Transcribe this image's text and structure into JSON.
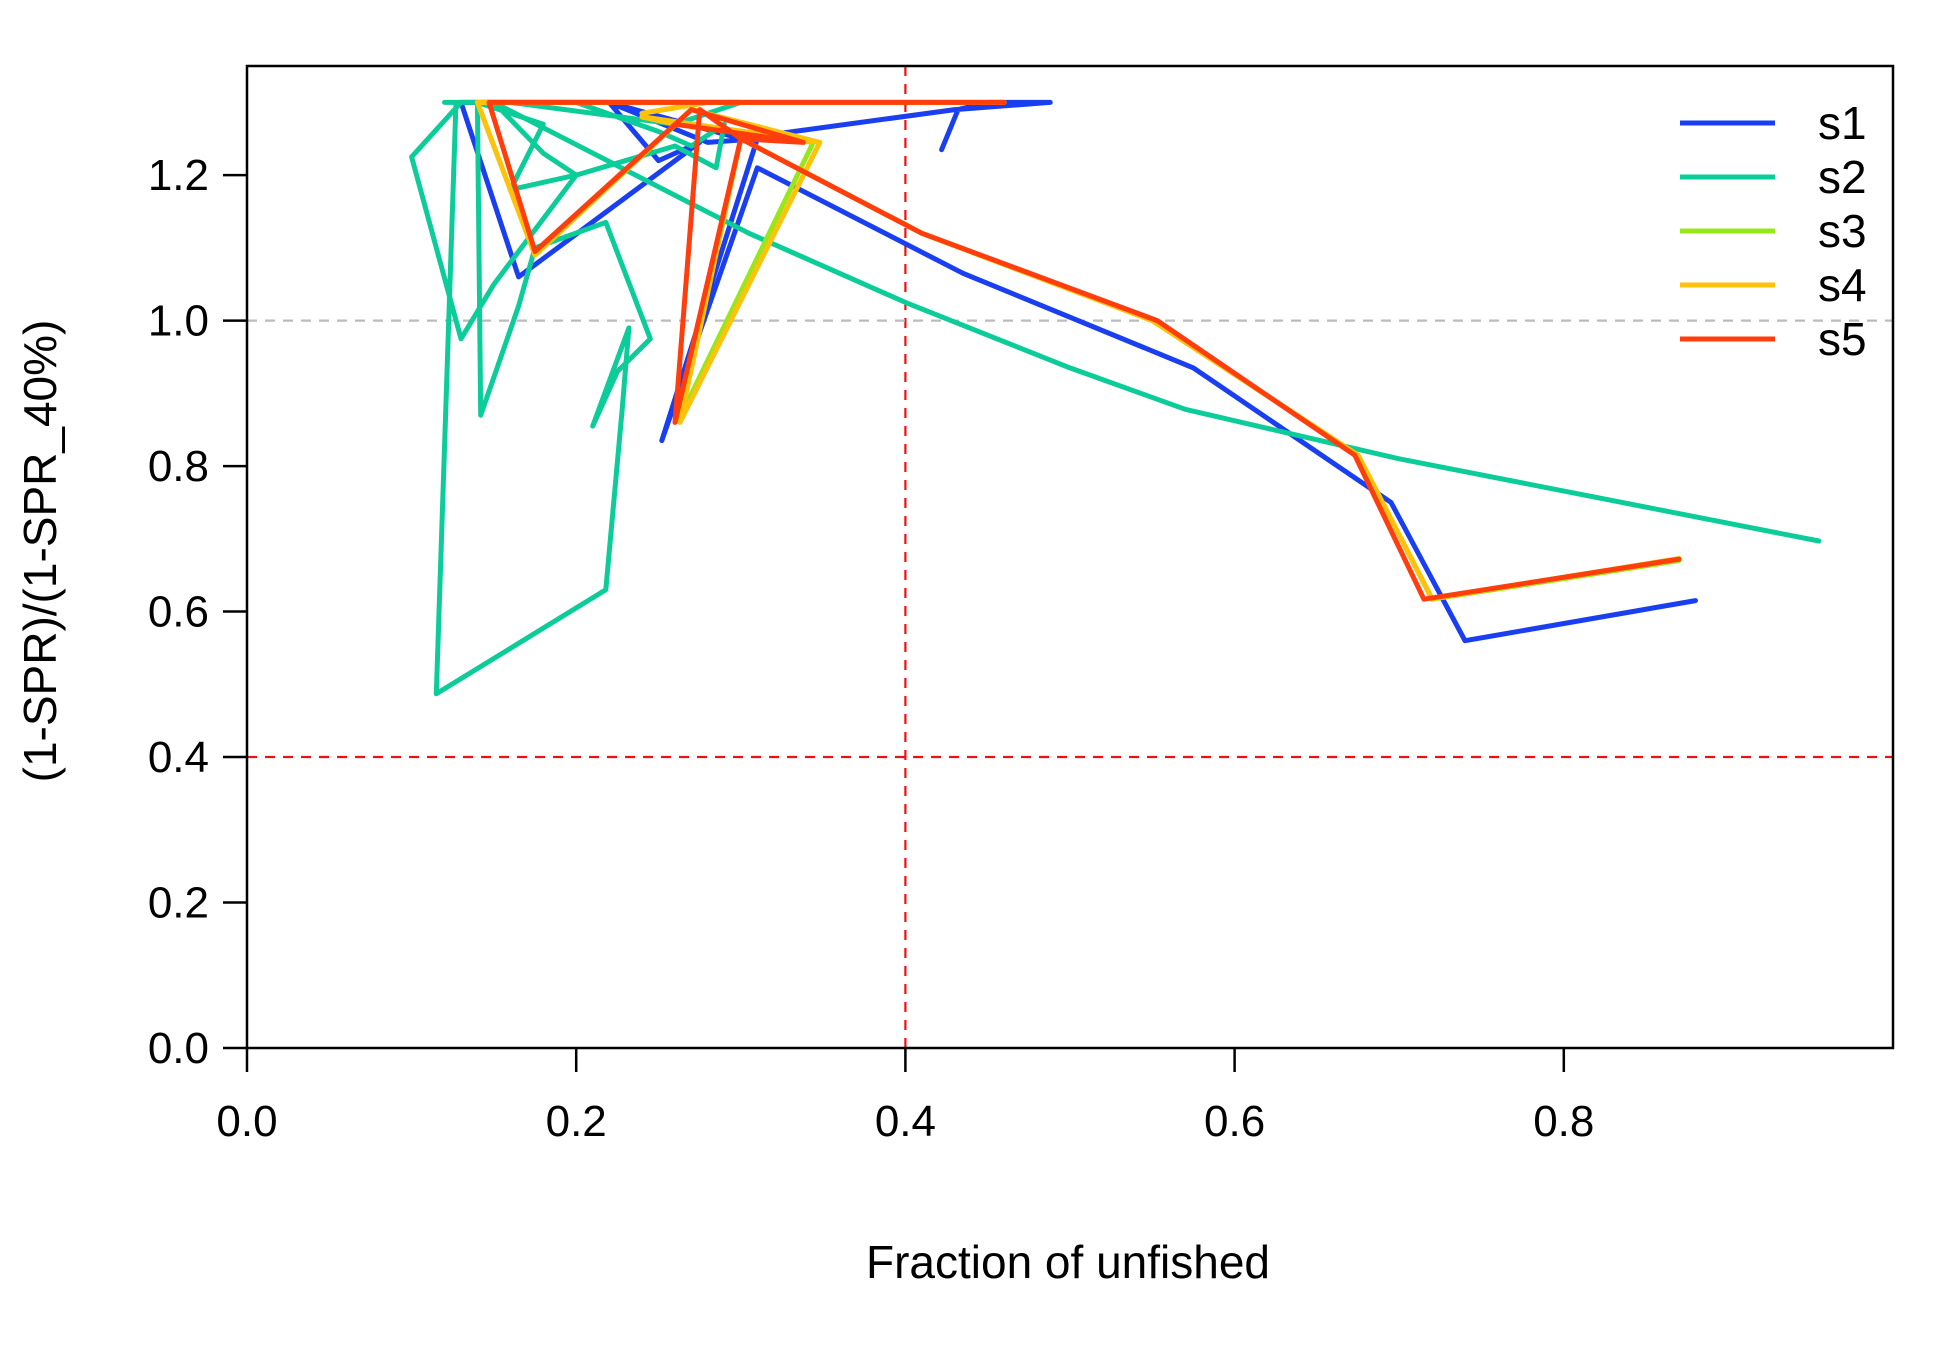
{
  "chart_data": {
    "type": "line",
    "title": "",
    "xlabel": "Fraction of unfished",
    "ylabel": "(1-SPR)/(1-SPR_40%)",
    "xlim": [
      0.0,
      1.0
    ],
    "ylim": [
      0.0,
      1.35
    ],
    "xticks": [
      "0.0",
      "0.2",
      "0.4",
      "0.6",
      "0.8"
    ],
    "yticks": [
      "0.0",
      "0.2",
      "0.4",
      "0.6",
      "0.8",
      "1.0",
      "1.2"
    ],
    "grid": false,
    "legend_position": "top-right",
    "reference_lines": [
      {
        "axis": "x",
        "value": 0.4,
        "color": "#ee1111",
        "style": "dashed"
      },
      {
        "axis": "y",
        "value": 0.4,
        "color": "#ee1111",
        "style": "dashed"
      },
      {
        "axis": "y",
        "value": 1.0,
        "color": "#bbbbbb",
        "style": "dashed"
      }
    ],
    "series": [
      {
        "name": "s1",
        "color": "#1a3ff0",
        "points": [
          [
            0.422,
            1.235
          ],
          [
            0.432,
            1.29
          ],
          [
            0.45,
            1.3
          ],
          [
            0.488,
            1.3
          ],
          [
            0.43,
            1.29
          ],
          [
            0.3,
            1.25
          ],
          [
            0.22,
            1.3
          ],
          [
            0.13,
            1.3
          ],
          [
            0.165,
            1.06
          ],
          [
            0.275,
            1.245
          ],
          [
            0.25,
            1.22
          ],
          [
            0.22,
            1.3
          ],
          [
            0.28,
            1.245
          ],
          [
            0.31,
            1.25
          ],
          [
            0.252,
            0.835
          ],
          [
            0.31,
            1.21
          ],
          [
            0.435,
            1.065
          ],
          [
            0.575,
            0.935
          ],
          [
            0.695,
            0.75
          ],
          [
            0.74,
            0.56
          ],
          [
            0.88,
            0.615
          ]
        ]
      },
      {
        "name": "s2",
        "color": "#0ccc99",
        "points": [
          [
            0.12,
            1.3
          ],
          [
            0.225,
            1.3
          ],
          [
            0.3,
            1.3
          ],
          [
            0.26,
            1.27
          ],
          [
            0.16,
            1.3
          ],
          [
            0.13,
            1.3
          ],
          [
            0.1,
            1.225
          ],
          [
            0.13,
            0.975
          ],
          [
            0.15,
            1.05
          ],
          [
            0.2,
            1.2
          ],
          [
            0.16,
            1.18
          ],
          [
            0.18,
            1.27
          ],
          [
            0.14,
            1.3
          ],
          [
            0.142,
            0.87
          ],
          [
            0.165,
            1.02
          ],
          [
            0.175,
            1.1
          ],
          [
            0.218,
            1.135
          ],
          [
            0.245,
            0.975
          ],
          [
            0.225,
            0.93
          ],
          [
            0.21,
            0.855
          ],
          [
            0.232,
            0.99
          ],
          [
            0.228,
            0.88
          ],
          [
            0.218,
            0.63
          ],
          [
            0.115,
            0.487
          ],
          [
            0.127,
            1.3
          ],
          [
            0.2,
            1.3
          ],
          [
            0.25,
            1.26
          ],
          [
            0.27,
            1.24
          ],
          [
            0.29,
            1.27
          ],
          [
            0.285,
            1.21
          ],
          [
            0.26,
            1.24
          ],
          [
            0.2,
            1.2
          ],
          [
            0.18,
            1.23
          ],
          [
            0.15,
            1.3
          ],
          [
            0.305,
            1.12
          ],
          [
            0.4,
            1.025
          ],
          [
            0.5,
            0.935
          ],
          [
            0.57,
            0.878
          ],
          [
            0.7,
            0.81
          ],
          [
            0.955,
            0.697
          ]
        ]
      },
      {
        "name": "s3",
        "color": "#99e61a",
        "points": [
          [
            0.24,
            1.285
          ],
          [
            0.28,
            1.3
          ],
          [
            0.32,
            1.3
          ],
          [
            0.46,
            1.3
          ],
          [
            0.14,
            1.3
          ],
          [
            0.175,
            1.09
          ],
          [
            0.27,
            1.29
          ],
          [
            0.344,
            1.245
          ],
          [
            0.26,
            1.27
          ],
          [
            0.24,
            1.28
          ],
          [
            0.344,
            1.245
          ],
          [
            0.262,
            0.862
          ],
          [
            0.3,
            1.25
          ],
          [
            0.41,
            1.12
          ],
          [
            0.55,
            1.0
          ],
          [
            0.675,
            0.815
          ],
          [
            0.72,
            0.617
          ],
          [
            0.87,
            0.67
          ]
        ]
      },
      {
        "name": "s4",
        "color": "#ffc20a",
        "points": [
          [
            0.24,
            1.285
          ],
          [
            0.28,
            1.3
          ],
          [
            0.32,
            1.3
          ],
          [
            0.46,
            1.3
          ],
          [
            0.14,
            1.3
          ],
          [
            0.175,
            1.09
          ],
          [
            0.27,
            1.29
          ],
          [
            0.348,
            1.245
          ],
          [
            0.26,
            1.27
          ],
          [
            0.24,
            1.28
          ],
          [
            0.348,
            1.245
          ],
          [
            0.263,
            0.86
          ],
          [
            0.3,
            1.25
          ],
          [
            0.41,
            1.12
          ],
          [
            0.55,
            1.0
          ],
          [
            0.675,
            0.815
          ],
          [
            0.72,
            0.618
          ],
          [
            0.87,
            0.673
          ]
        ]
      },
      {
        "name": "s5",
        "color": "#ff3d0d",
        "points": [
          [
            0.32,
            1.3
          ],
          [
            0.46,
            1.3
          ],
          [
            0.23,
            1.3
          ],
          [
            0.147,
            1.3
          ],
          [
            0.175,
            1.095
          ],
          [
            0.27,
            1.29
          ],
          [
            0.338,
            1.245
          ],
          [
            0.26,
            1.27
          ],
          [
            0.338,
            1.245
          ],
          [
            0.3,
            1.25
          ],
          [
            0.26,
            0.86
          ],
          [
            0.275,
            1.29
          ],
          [
            0.3,
            1.25
          ],
          [
            0.41,
            1.12
          ],
          [
            0.553,
            1.0
          ],
          [
            0.673,
            0.815
          ],
          [
            0.715,
            0.617
          ],
          [
            0.87,
            0.672
          ]
        ]
      }
    ]
  }
}
